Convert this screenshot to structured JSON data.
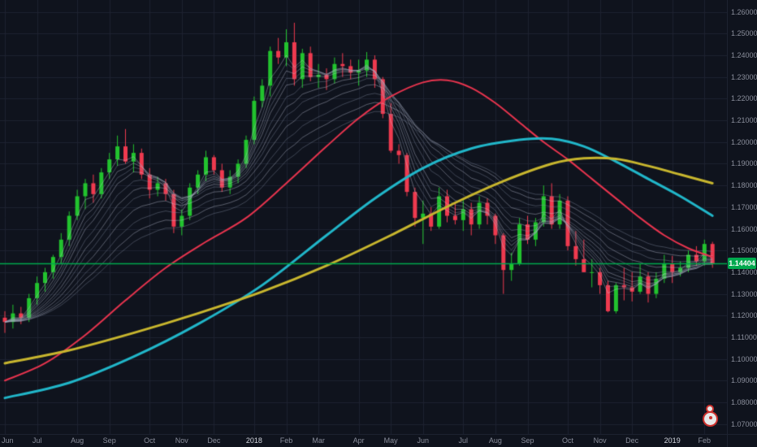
{
  "chart": {
    "background": "#0f131d",
    "grid_color": "#1d2230",
    "axis_text_color": "#8a8e9b",
    "axis_major_text_color": "#d1d4dc",
    "up_color": "#22c32e",
    "down_color": "#ef3a4f",
    "ribbon_colors": [
      "rgba(192,198,216,0.42)",
      "rgba(132,140,162,0.42)"
    ],
    "price_ticks": [
      "1.26000",
      "1.25000",
      "1.24000",
      "1.23000",
      "1.22000",
      "1.21000",
      "1.20000",
      "1.19000",
      "1.18000",
      "1.17000",
      "1.16000",
      "1.15000",
      "1.14000",
      "1.13000",
      "1.12000",
      "1.11000",
      "1.10000",
      "1.09000",
      "1.08000",
      "1.07000"
    ],
    "time_ticks": [
      {
        "label": "Jun",
        "i": 0
      },
      {
        "label": "Jul",
        "i": 4
      },
      {
        "label": "Aug",
        "i": 9
      },
      {
        "label": "Sep",
        "i": 13
      },
      {
        "label": "Oct",
        "i": 18
      },
      {
        "label": "Nov",
        "i": 22
      },
      {
        "label": "Dec",
        "i": 26
      },
      {
        "label": "2018",
        "i": 31,
        "highlight": true
      },
      {
        "label": "Feb",
        "i": 35
      },
      {
        "label": "Mar",
        "i": 39
      },
      {
        "label": "Apr",
        "i": 44
      },
      {
        "label": "May",
        "i": 48
      },
      {
        "label": "Jun",
        "i": 52
      },
      {
        "label": "Jul",
        "i": 57
      },
      {
        "label": "Aug",
        "i": 61
      },
      {
        "label": "Sep",
        "i": 65
      },
      {
        "label": "Oct",
        "i": 70
      },
      {
        "label": "Nov",
        "i": 74
      },
      {
        "label": "Dec",
        "i": 78
      },
      {
        "label": "2019",
        "i": 83,
        "highlight": true
      },
      {
        "label": "Feb",
        "i": 87
      }
    ],
    "last_price_label": {
      "text": "1.14404",
      "bg": "#00a94e",
      "fg": "#ffffff"
    }
  },
  "chart_data": {
    "type": "candlestick",
    "timeframe_span": "Jun 2017 - Feb 2019",
    "y_range": [
      1.065,
      1.2655
    ],
    "grid": true,
    "candles": [
      [
        1.119,
        1.122,
        1.112,
        1.117
      ],
      [
        1.117,
        1.125,
        1.114,
        1.121
      ],
      [
        1.121,
        1.124,
        1.116,
        1.119
      ],
      [
        1.119,
        1.13,
        1.117,
        1.128
      ],
      [
        1.128,
        1.138,
        1.125,
        1.135
      ],
      [
        1.135,
        1.142,
        1.131,
        1.14
      ],
      [
        1.14,
        1.148,
        1.137,
        1.147
      ],
      [
        1.147,
        1.158,
        1.144,
        1.155
      ],
      [
        1.155,
        1.168,
        1.152,
        1.166
      ],
      [
        1.166,
        1.178,
        1.164,
        1.175
      ],
      [
        1.175,
        1.183,
        1.169,
        1.181
      ],
      [
        1.181,
        1.185,
        1.172,
        1.176
      ],
      [
        1.176,
        1.188,
        1.174,
        1.186
      ],
      [
        1.186,
        1.195,
        1.183,
        1.192
      ],
      [
        1.192,
        1.203,
        1.189,
        1.198
      ],
      [
        1.198,
        1.206,
        1.19,
        1.191
      ],
      [
        1.191,
        1.199,
        1.186,
        1.195
      ],
      [
        1.195,
        1.197,
        1.183,
        1.185
      ],
      [
        1.185,
        1.188,
        1.174,
        1.178
      ],
      [
        1.178,
        1.184,
        1.175,
        1.181
      ],
      [
        1.181,
        1.183,
        1.173,
        1.176
      ],
      [
        1.176,
        1.178,
        1.158,
        1.161
      ],
      [
        1.161,
        1.169,
        1.157,
        1.166
      ],
      [
        1.166,
        1.181,
        1.164,
        1.179
      ],
      [
        1.179,
        1.187,
        1.176,
        1.185
      ],
      [
        1.185,
        1.196,
        1.182,
        1.193
      ],
      [
        1.193,
        1.194,
        1.185,
        1.187
      ],
      [
        1.187,
        1.19,
        1.177,
        1.179
      ],
      [
        1.179,
        1.187,
        1.176,
        1.184
      ],
      [
        1.184,
        1.192,
        1.181,
        1.19
      ],
      [
        1.19,
        1.203,
        1.188,
        1.201
      ],
      [
        1.201,
        1.221,
        1.199,
        1.219
      ],
      [
        1.219,
        1.229,
        1.216,
        1.226
      ],
      [
        1.226,
        1.244,
        1.221,
        1.242
      ],
      [
        1.242,
        1.248,
        1.236,
        1.239
      ],
      [
        1.239,
        1.252,
        1.235,
        1.246
      ],
      [
        1.246,
        1.255,
        1.226,
        1.229
      ],
      [
        1.229,
        1.243,
        1.225,
        1.241
      ],
      [
        1.241,
        1.244,
        1.228,
        1.23
      ],
      [
        1.23,
        1.236,
        1.225,
        1.231
      ],
      [
        1.231,
        1.234,
        1.224,
        1.229
      ],
      [
        1.229,
        1.239,
        1.227,
        1.236
      ],
      [
        1.236,
        1.241,
        1.23,
        1.235
      ],
      [
        1.235,
        1.238,
        1.229,
        1.232
      ],
      [
        1.232,
        1.238,
        1.226,
        1.233
      ],
      [
        1.233,
        1.2415,
        1.23,
        1.238
      ],
      [
        1.238,
        1.24,
        1.225,
        1.229
      ],
      [
        1.229,
        1.23,
        1.211,
        1.213
      ],
      [
        1.213,
        1.218,
        1.195,
        1.196
      ],
      [
        1.196,
        1.199,
        1.19,
        1.194
      ],
      [
        1.194,
        1.195,
        1.175,
        1.177
      ],
      [
        1.177,
        1.179,
        1.161,
        1.165
      ],
      [
        1.165,
        1.173,
        1.153,
        1.167
      ],
      [
        1.167,
        1.17,
        1.159,
        1.161
      ],
      [
        1.161,
        1.179,
        1.16,
        1.175
      ],
      [
        1.175,
        1.178,
        1.163,
        1.166
      ],
      [
        1.166,
        1.172,
        1.162,
        1.164
      ],
      [
        1.164,
        1.174,
        1.159,
        1.169
      ],
      [
        1.169,
        1.172,
        1.157,
        1.162
      ],
      [
        1.162,
        1.175,
        1.16,
        1.172
      ],
      [
        1.172,
        1.174,
        1.162,
        1.166
      ],
      [
        1.166,
        1.167,
        1.153,
        1.157
      ],
      [
        1.157,
        1.158,
        1.13,
        1.141
      ],
      [
        1.141,
        1.149,
        1.136,
        1.144
      ],
      [
        1.144,
        1.165,
        1.143,
        1.162
      ],
      [
        1.162,
        1.166,
        1.153,
        1.155
      ],
      [
        1.155,
        1.165,
        1.152,
        1.163
      ],
      [
        1.163,
        1.18,
        1.161,
        1.175
      ],
      [
        1.175,
        1.181,
        1.16,
        1.162
      ],
      [
        1.162,
        1.176,
        1.16,
        1.173
      ],
      [
        1.173,
        1.175,
        1.15,
        1.152
      ],
      [
        1.152,
        1.159,
        1.143,
        1.146
      ],
      [
        1.146,
        1.155,
        1.14,
        1.14
      ],
      [
        1.14,
        1.146,
        1.133,
        1.14
      ],
      [
        1.14,
        1.142,
        1.13,
        1.134
      ],
      [
        1.134,
        1.136,
        1.1215,
        1.122
      ],
      [
        1.122,
        1.135,
        1.121,
        1.134
      ],
      [
        1.134,
        1.142,
        1.127,
        1.133
      ],
      [
        1.133,
        1.14,
        1.1265,
        1.131
      ],
      [
        1.131,
        1.144,
        1.13,
        1.138
      ],
      [
        1.138,
        1.14,
        1.126,
        1.13
      ],
      [
        1.13,
        1.14,
        1.128,
        1.137
      ],
      [
        1.137,
        1.148,
        1.135,
        1.144
      ],
      [
        1.144,
        1.1475,
        1.135,
        1.14
      ],
      [
        1.14,
        1.145,
        1.138,
        1.142
      ],
      [
        1.142,
        1.15,
        1.14,
        1.148
      ],
      [
        1.148,
        1.152,
        1.143,
        1.145
      ],
      [
        1.145,
        1.155,
        1.143,
        1.153
      ],
      [
        1.153,
        1.154,
        1.142,
        1.144
      ]
    ],
    "ribbon": {
      "type": "ema_set",
      "periods": [
        3,
        4,
        5,
        6,
        7,
        9,
        11,
        13,
        16,
        20,
        24,
        28
      ]
    },
    "overlays": [
      {
        "name": "ma-fast-red",
        "color": "#e8344e",
        "points": [
          [
            0,
            1.09
          ],
          [
            5,
            1.098
          ],
          [
            10,
            1.111
          ],
          [
            15,
            1.127
          ],
          [
            20,
            1.142
          ],
          [
            25,
            1.154
          ],
          [
            30,
            1.165
          ],
          [
            35,
            1.181
          ],
          [
            40,
            1.198
          ],
          [
            44,
            1.211
          ],
          [
            48,
            1.221
          ],
          [
            52,
            1.2275
          ],
          [
            55,
            1.2285
          ],
          [
            58,
            1.225
          ],
          [
            61,
            1.218
          ],
          [
            64,
            1.209
          ],
          [
            67,
            1.2
          ],
          [
            70,
            1.192
          ],
          [
            73,
            1.183
          ],
          [
            76,
            1.174
          ],
          [
            79,
            1.165
          ],
          [
            82,
            1.157
          ],
          [
            85,
            1.151
          ],
          [
            88,
            1.147
          ]
        ]
      },
      {
        "name": "ma-mid-cyan",
        "color": "#21b6c9",
        "points": [
          [
            0,
            1.082
          ],
          [
            8,
            1.089
          ],
          [
            16,
            1.101
          ],
          [
            24,
            1.116
          ],
          [
            32,
            1.134
          ],
          [
            40,
            1.157
          ],
          [
            46,
            1.174
          ],
          [
            52,
            1.188
          ],
          [
            58,
            1.197
          ],
          [
            64,
            1.201
          ],
          [
            68,
            1.2015
          ],
          [
            72,
            1.198
          ],
          [
            76,
            1.191
          ],
          [
            80,
            1.183
          ],
          [
            84,
            1.175
          ],
          [
            88,
            1.166
          ]
        ]
      },
      {
        "name": "ma-slow-yellow",
        "color": "#c8b62e",
        "points": [
          [
            0,
            1.098
          ],
          [
            8,
            1.104
          ],
          [
            16,
            1.112
          ],
          [
            24,
            1.121
          ],
          [
            32,
            1.131
          ],
          [
            40,
            1.143
          ],
          [
            48,
            1.157
          ],
          [
            56,
            1.172
          ],
          [
            62,
            1.182
          ],
          [
            68,
            1.19
          ],
          [
            72,
            1.1925
          ],
          [
            76,
            1.1922
          ],
          [
            80,
            1.189
          ],
          [
            84,
            1.185
          ],
          [
            88,
            1.181
          ]
        ]
      }
    ],
    "horizontal_line": {
      "price": 1.14404,
      "color": "#00a94e"
    }
  }
}
